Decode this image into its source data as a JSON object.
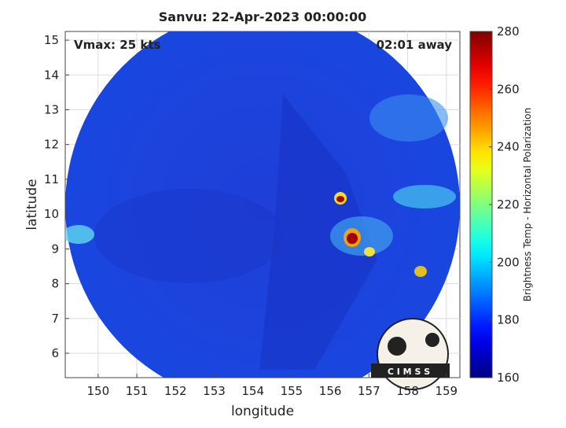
{
  "chart_data": {
    "type": "heatmap",
    "title": "Sanvu: 22-Apr-2023 00:00:00",
    "annotations": [
      "Vmax: 25 kts",
      "02:01 away"
    ],
    "x_label": "longitude",
    "y_label": "latitude",
    "xlim": [
      149.15,
      159.35
    ],
    "xticks": [
      150,
      151,
      152,
      153,
      154,
      155,
      156,
      157,
      158,
      159
    ],
    "ylim": [
      5.3,
      15.25
    ],
    "yticks": [
      6,
      7,
      8,
      9,
      10,
      11,
      12,
      13,
      14,
      15
    ],
    "grid": true,
    "colormap": "jet",
    "colorbar_label": "Brightness Temp - Horizontal Polarization",
    "clim": [
      160,
      280
    ],
    "colorbar_ticks": [
      160,
      180,
      200,
      220,
      240,
      260,
      280
    ],
    "logo_text": "C I M S S"
  }
}
